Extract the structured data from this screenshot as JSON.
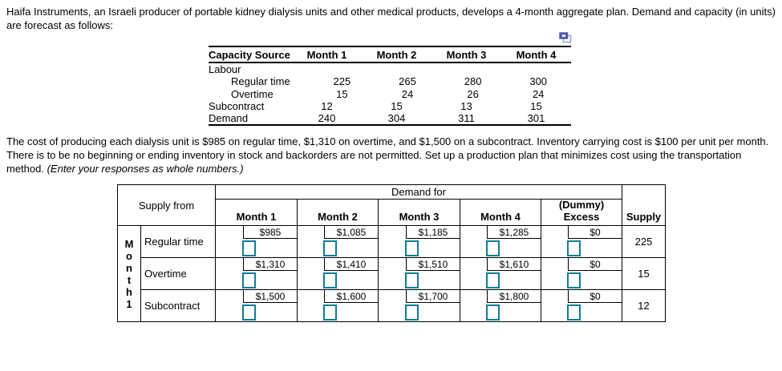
{
  "colors": {
    "answer_box_border": "#0e7c97",
    "copy_icon_dark": "#4a55a2",
    "copy_icon_light": "#9aa3d4"
  },
  "intro": {
    "line1": "Haifa Instruments, an Israeli producer of portable kidney dialysis units and other medical products, develops a 4-month aggregate plan. Demand and capacity (in units)",
    "line2": "are forecast as follows:"
  },
  "capacity_table": {
    "columns": [
      "Capacity Source",
      "Month 1",
      "Month 2",
      "Month 3",
      "Month 4"
    ],
    "rows": [
      {
        "label": "Labour",
        "indent": 0,
        "values": [
          "",
          "",
          "",
          ""
        ]
      },
      {
        "label": "Regular time",
        "indent": 1,
        "values": [
          "225",
          "265",
          "280",
          "300"
        ]
      },
      {
        "label": "Overtime",
        "indent": 1,
        "values": [
          "15",
          "24",
          "26",
          "24"
        ]
      },
      {
        "label": "Subcontract",
        "indent": 0,
        "values": [
          "12",
          "15",
          "13",
          "15"
        ]
      },
      {
        "label": "Demand",
        "indent": 0,
        "values": [
          "240",
          "304",
          "311",
          "301"
        ]
      }
    ]
  },
  "problem": {
    "line1": "The cost of producing each dialysis unit is $985 on regular time, $1,310 on overtime, and $1,500 on a subcontract. Inventory carrying cost is $100 per unit per month.",
    "line2": "There is to be no beginning or ending inventory in stock and backorders are not permitted. Set up a production plan that minimizes cost using the transportation",
    "line3_normal": "method. ",
    "line3_italic": "(Enter your responses as whole numbers.)"
  },
  "transport_table": {
    "corner_label": "Supply from",
    "demand_group_header": "Demand for",
    "col_headers": [
      {
        "lines": [
          "Month 1"
        ]
      },
      {
        "lines": [
          "Month 2"
        ]
      },
      {
        "lines": [
          "Month 3"
        ]
      },
      {
        "lines": [
          "Month 4"
        ]
      },
      {
        "lines": [
          "(Dummy)",
          "Excess"
        ]
      }
    ],
    "supply_header": "Supply",
    "row_group_vertical_label": "Month 1",
    "rows": [
      {
        "label": "Regular time",
        "costs": [
          "$985",
          "$1,085",
          "$1,185",
          "$1,285",
          "$0"
        ],
        "supply": "225"
      },
      {
        "label": "Overtime",
        "costs": [
          "$1,310",
          "$1,410",
          "$1,510",
          "$1,610",
          "$0"
        ],
        "supply": "15"
      },
      {
        "label": "Subcontract",
        "costs": [
          "$1,500",
          "$1,600",
          "$1,700",
          "$1,800",
          "$0"
        ],
        "supply": "12"
      }
    ],
    "input_value": ""
  }
}
